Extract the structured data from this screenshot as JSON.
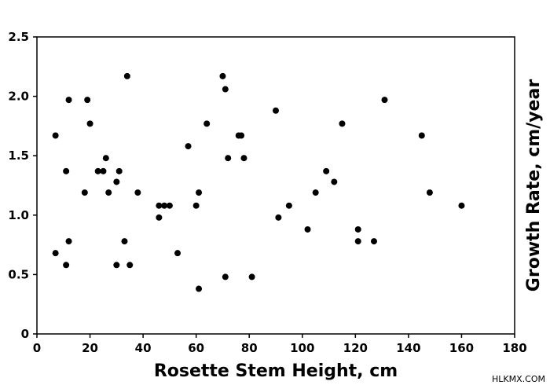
{
  "chart_data": {
    "type": "scatter",
    "title": "",
    "xlabel": "Rosette Stem Height, cm",
    "ylabel": "Growth Rate, cm/year",
    "xlim": [
      0,
      180
    ],
    "ylim": [
      0,
      2.5
    ],
    "xticks": [
      "0",
      "20",
      "40",
      "60",
      "80",
      "100",
      "120",
      "140",
      "160",
      "180"
    ],
    "yticks": [
      "0",
      "0.5",
      "1.0",
      "1.5",
      "2.0",
      "2.5"
    ],
    "grid": false,
    "marker_color": "#000000",
    "points": [
      [
        7,
        1.67
      ],
      [
        7,
        0.68
      ],
      [
        11,
        1.37
      ],
      [
        11,
        0.58
      ],
      [
        12,
        1.97
      ],
      [
        12,
        0.78
      ],
      [
        18,
        1.19
      ],
      [
        19,
        1.97
      ],
      [
        20,
        1.77
      ],
      [
        23,
        1.37
      ],
      [
        25,
        1.37
      ],
      [
        26,
        1.48
      ],
      [
        27,
        1.19
      ],
      [
        30,
        1.28
      ],
      [
        30,
        0.58
      ],
      [
        31,
        1.37
      ],
      [
        33,
        0.78
      ],
      [
        34,
        2.17
      ],
      [
        35,
        0.58
      ],
      [
        38,
        1.19
      ],
      [
        46,
        1.08
      ],
      [
        46,
        0.98
      ],
      [
        48,
        1.08
      ],
      [
        50,
        1.08
      ],
      [
        53,
        0.68
      ],
      [
        57,
        1.58
      ],
      [
        60,
        1.08
      ],
      [
        61,
        1.19
      ],
      [
        61,
        0.38
      ],
      [
        64,
        1.77
      ],
      [
        70,
        2.17
      ],
      [
        71,
        2.06
      ],
      [
        71,
        0.48
      ],
      [
        72,
        1.48
      ],
      [
        76,
        1.67
      ],
      [
        77,
        1.67
      ],
      [
        78,
        1.48
      ],
      [
        81,
        0.48
      ],
      [
        90,
        1.88
      ],
      [
        91,
        0.98
      ],
      [
        95,
        1.08
      ],
      [
        102,
        0.88
      ],
      [
        105,
        1.19
      ],
      [
        109,
        1.37
      ],
      [
        112,
        1.28
      ],
      [
        115,
        1.77
      ],
      [
        121,
        0.88
      ],
      [
        121,
        0.78
      ],
      [
        127,
        0.78
      ],
      [
        131,
        1.97
      ],
      [
        145,
        1.67
      ],
      [
        148,
        1.19
      ],
      [
        160,
        1.08
      ]
    ]
  },
  "watermark": "HLKMX.COM"
}
